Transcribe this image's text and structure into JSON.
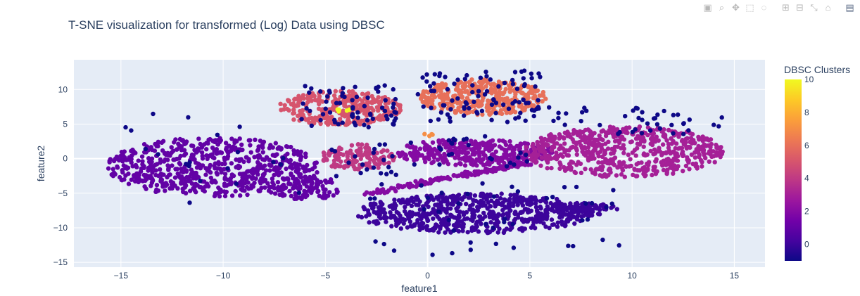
{
  "chart_data": {
    "type": "scatter",
    "title": "T-SNE visualization for transformed (Log) Data using DBSC",
    "xlabel": "feature1",
    "ylabel": "feature2",
    "xlim": [
      -17.3,
      16.5
    ],
    "ylim": [
      -15.7,
      14.3
    ],
    "xticks": [
      -15,
      -10,
      -5,
      0,
      5,
      10,
      15
    ],
    "yticks": [
      -15,
      -10,
      -5,
      0,
      5,
      10
    ],
    "grid": true,
    "colorbar": {
      "title": "DBSC Clusters",
      "range": [
        -1,
        10
      ],
      "ticks": [
        0,
        2,
        4,
        6,
        8,
        10
      ],
      "colorscale": [
        "#0d0887",
        "#46039f",
        "#7201a8",
        "#9c179e",
        "#bd3786",
        "#d8576b",
        "#ed7953",
        "#fb9f3a",
        "#fdca26",
        "#f0f921"
      ]
    },
    "clusters": [
      {
        "label": 1,
        "shape": "blob",
        "center": [
          -10.5,
          -1.2
        ],
        "radius": [
          5.2,
          4.3
        ],
        "count": 650
      },
      {
        "label": 1,
        "shape": "blob",
        "center": [
          -6.0,
          -4.2
        ],
        "radius": [
          1.8,
          1.8
        ],
        "count": 110
      },
      {
        "label": 0,
        "shape": "blob",
        "center": [
          2.3,
          -7.9
        ],
        "radius": [
          5.8,
          2.9
        ],
        "count": 620
      },
      {
        "label": 0,
        "shape": "blob",
        "center": [
          7.5,
          -7.3
        ],
        "radius": [
          1.8,
          0.9
        ],
        "count": 80
      },
      {
        "label": 2,
        "shape": "blob",
        "center": [
          2.2,
          0.9
        ],
        "radius": [
          4.0,
          1.9
        ],
        "count": 330
      },
      {
        "label": 2,
        "shape": "band",
        "from": [
          -2.8,
          -5.0
        ],
        "to": [
          4.8,
          -0.6
        ],
        "width": 0.55,
        "count": 160
      },
      {
        "label": 3,
        "shape": "blob",
        "center": [
          9.6,
          1.0
        ],
        "radius": [
          4.9,
          3.7
        ],
        "count": 600
      },
      {
        "label": 4,
        "shape": "blob",
        "center": [
          -3.4,
          0.2
        ],
        "radius": [
          1.8,
          1.9
        ],
        "count": 130
      },
      {
        "label": 5,
        "shape": "blob",
        "center": [
          -4.3,
          7.3
        ],
        "radius": [
          3.0,
          2.5
        ],
        "count": 320
      },
      {
        "label": 6,
        "shape": "blob",
        "center": [
          2.7,
          8.9
        ],
        "radius": [
          3.1,
          2.6
        ],
        "count": 360
      },
      {
        "label": 10,
        "shape": "blob",
        "center": [
          -4.0,
          7.0
        ],
        "radius": [
          0.5,
          0.3
        ],
        "count": 5
      },
      {
        "label": 7,
        "shape": "blob",
        "center": [
          0.0,
          3.4
        ],
        "radius": [
          0.3,
          0.2
        ],
        "count": 4
      }
    ],
    "noise": [
      {
        "region": [
          -6.5,
          4.5,
          -1.5,
          11.0
        ],
        "count": 70
      },
      {
        "region": [
          -0.5,
          5.2,
          5.5,
          12.8
        ],
        "count": 90
      },
      {
        "region": [
          4.8,
          3.5,
          14.5,
          7.5
        ],
        "count": 45
      },
      {
        "region": [
          -4.8,
          -2.8,
          -1.5,
          2.8
        ],
        "count": 20
      },
      {
        "region": [
          -15.0,
          -6.5,
          -5.0,
          6.5
        ],
        "count": 20
      },
      {
        "region": [
          -3.5,
          -14.0,
          9.5,
          -3.5
        ],
        "count": 45
      },
      {
        "region": [
          -1.0,
          -1.5,
          5.0,
          3.5
        ],
        "count": 25
      }
    ]
  },
  "modebar": {
    "icons": [
      "camera-icon",
      "zoom-icon",
      "pan-icon",
      "box-select-icon",
      "lasso-icon",
      "zoom-in-icon",
      "zoom-out-icon",
      "autoscale-icon",
      "reset-axes-icon",
      "plotly-logo-icon"
    ],
    "glyphs": [
      "▣",
      "⌕",
      "✥",
      "⬚",
      "◌",
      "⊞",
      "⊟",
      "⤡",
      "⌂",
      "▤"
    ]
  }
}
